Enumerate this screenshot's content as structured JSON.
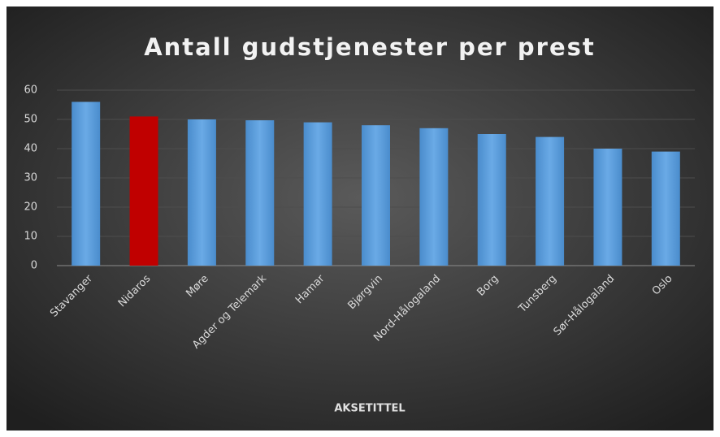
{
  "chart_data": {
    "type": "bar",
    "title": "Antall gudstjenester per prest",
    "x_label": "AKSETITTEL",
    "categories": [
      "Stavanger",
      "Nidaros",
      "Møre",
      "Agder og Telemark",
      "Hamar",
      "Bjørgvin",
      "Nord-Hålogaland",
      "Borg",
      "Tunsberg",
      "Sør-Hålogaland",
      "Oslo"
    ],
    "values": [
      56,
      51,
      50,
      49.7,
      49,
      48,
      47,
      45,
      44,
      40,
      39
    ],
    "colors": [
      "#5b9bd5",
      "#c00000",
      "#5b9bd5",
      "#5b9bd5",
      "#5b9bd5",
      "#5b9bd5",
      "#5b9bd5",
      "#5b9bd5",
      "#5b9bd5",
      "#5b9bd5",
      "#5b9bd5"
    ],
    "ylim": [
      0,
      60
    ],
    "yticks": [
      0,
      10,
      20,
      30,
      40,
      50,
      60
    ],
    "grid": true
  }
}
